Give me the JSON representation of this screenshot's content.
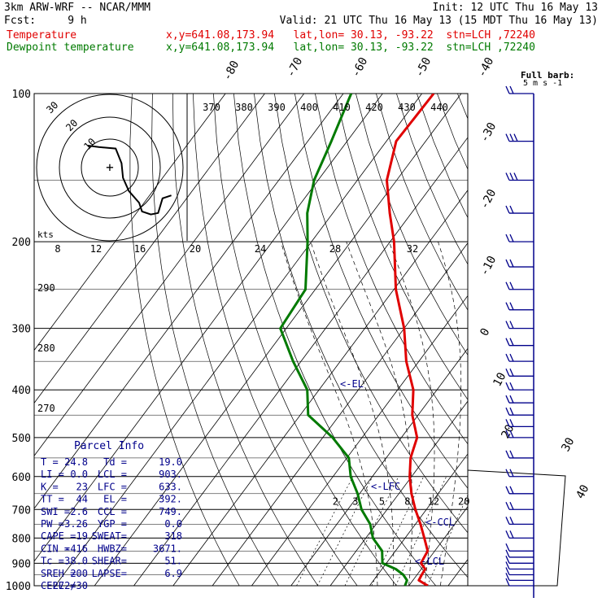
{
  "header": {
    "model": "3km ARW-WRF -- NCAR/MMM",
    "init": "Init: 12 UTC Thu 16 May 13",
    "fcst": "Fcst:     9 h",
    "valid": "Valid: 21 UTC Thu 16 May 13 (15 MDT Thu 16 May 13)",
    "temp_label": "Temperature",
    "dew_label": "Dewpoint temperature",
    "temp_loc": "x,y=641.08,173.94   lat,lon= 30.13, -93.22  stn=LCH ,72240",
    "dew_loc": "x,y=641.08,173.94   lat,lon= 30.13, -93.22  stn=LCH ,72240",
    "barb_note_1": "Full barb:",
    "barb_note_2": "5 m s",
    "barb_note_sup": "-1"
  },
  "colors": {
    "temperature": "#e00000",
    "dewpoint": "#007a00",
    "info": "#00008b",
    "grid": "#000000"
  },
  "chart_data": {
    "type": "line",
    "title": "",
    "ylabel": "",
    "pressure_levels": [
      100,
      200,
      300,
      400,
      500,
      600,
      700,
      800,
      900,
      1000
    ],
    "pressure_labels": [
      "100",
      "200",
      "300",
      "400",
      "500",
      "600",
      "700",
      "800",
      "900",
      "1000"
    ],
    "isotherm_labels": [
      "-80",
      "-70",
      "-60",
      "-50",
      "-40",
      "-30",
      "-20",
      "-10",
      "0",
      "10",
      "20",
      "30",
      "40"
    ],
    "theta_labels": [
      "370",
      "380",
      "390",
      "400",
      "410",
      "420",
      "430",
      "440"
    ],
    "mixing_ratio_labels": [
      "2",
      "3",
      "5",
      "8",
      "12",
      "20"
    ],
    "hodo_speed_labels": [
      "8",
      "12",
      "16",
      "20",
      "24",
      "28",
      "32"
    ],
    "hodo_ring_labels": [
      "30",
      "20",
      "10"
    ],
    "hodo_kts_label": "kts",
    "left_numbers": [
      "290",
      "280",
      "270"
    ],
    "parcel_markers": [
      "<-EL",
      "<-LFC",
      "<-CCL",
      "<-LCL"
    ],
    "series": [
      {
        "name": "Temperature",
        "pressure": [
          1000,
          975,
          950,
          925,
          900,
          850,
          800,
          750,
          700,
          650,
          600,
          550,
          500,
          450,
          400,
          350,
          300,
          250,
          200,
          175,
          150,
          125,
          100
        ],
        "temperature": [
          24.8,
          21.5,
          21.2,
          21.0,
          18.8,
          18.2,
          14.9,
          11.3,
          7.2,
          3.2,
          -0.5,
          -3.8,
          -6.0,
          -11.5,
          -16.0,
          -23.2,
          -30.0,
          -39.5,
          -49.0,
          -55.5,
          -62.5,
          -67.5,
          -67.0
        ]
      },
      {
        "name": "Dewpoint temperature",
        "pressure": [
          1000,
          975,
          950,
          925,
          900,
          850,
          800,
          750,
          700,
          650,
          600,
          550,
          500,
          450,
          400,
          350,
          300,
          250,
          200,
          175,
          150,
          125,
          100
        ],
        "temperature": [
          19.0,
          18.5,
          16.5,
          13.5,
          9.0,
          6.6,
          1.8,
          -1.5,
          -6.5,
          -10.5,
          -15.5,
          -19.5,
          -27.5,
          -38.0,
          -43.0,
          -52.0,
          -61.5,
          -62.5,
          -71.0,
          -76.5,
          -81.0,
          -84.0,
          -88.0
        ]
      }
    ]
  },
  "hodograph_points_ms": [
    [
      -3,
      7
    ],
    [
      -1.5,
      6.8
    ],
    [
      0.8,
      6.6
    ],
    [
      1.6,
      4.6
    ],
    [
      1.8,
      2.6
    ],
    [
      2.6,
      0.8
    ],
    [
      4.0,
      -0.8
    ],
    [
      4.4,
      -2.0
    ],
    [
      5.6,
      -2.4
    ],
    [
      6.6,
      -2.2
    ],
    [
      7.2,
      -0.2
    ],
    [
      8.4,
      0.2
    ]
  ],
  "parcel_info": {
    "title": "Parcel Info",
    "rows": [
      [
        "T  =",
        "24.8",
        "Td =",
        "19.0"
      ],
      [
        "LI =",
        "0.0",
        "LCL =",
        "903."
      ],
      [
        "K  =",
        "23",
        "LFC =",
        "633."
      ],
      [
        "TT =",
        "44",
        "EL  =",
        "392."
      ],
      [
        "SWI =",
        "2.6",
        "CCL =",
        "749."
      ],
      [
        "PW =",
        "3.26",
        "YGP =",
        "0.0"
      ],
      [
        "CAPE =",
        "19",
        "SWEAT=",
        "318"
      ],
      [
        "CIN =",
        "-416",
        "HWBZ=",
        "3671."
      ],
      [
        "Tc =",
        "38.0",
        "SHEAR=",
        "51."
      ],
      [
        "SREH =",
        "200",
        "LAPSE=",
        "6.9"
      ],
      [
        "CELL =",
        "272/30",
        "",
        ""
      ]
    ]
  },
  "wind_barbs": [
    {
      "p": 100,
      "dir": 270,
      "spd": 12
    },
    {
      "p": 125,
      "dir": 270,
      "spd": 14
    },
    {
      "p": 150,
      "dir": 265,
      "spd": 13
    },
    {
      "p": 175,
      "dir": 265,
      "spd": 12
    },
    {
      "p": 200,
      "dir": 270,
      "spd": 11
    },
    {
      "p": 225,
      "dir": 270,
      "spd": 11
    },
    {
      "p": 250,
      "dir": 270,
      "spd": 10
    },
    {
      "p": 275,
      "dir": 270,
      "spd": 10
    },
    {
      "p": 300,
      "dir": 270,
      "spd": 10
    },
    {
      "p": 325,
      "dir": 275,
      "spd": 10
    },
    {
      "p": 350,
      "dir": 275,
      "spd": 10
    },
    {
      "p": 375,
      "dir": 275,
      "spd": 10
    },
    {
      "p": 400,
      "dir": 280,
      "spd": 11
    },
    {
      "p": 425,
      "dir": 280,
      "spd": 12
    },
    {
      "p": 450,
      "dir": 280,
      "spd": 12
    },
    {
      "p": 475,
      "dir": 280,
      "spd": 12
    },
    {
      "p": 500,
      "dir": 285,
      "spd": 11
    },
    {
      "p": 550,
      "dir": 285,
      "spd": 11
    },
    {
      "p": 600,
      "dir": 285,
      "spd": 11
    },
    {
      "p": 650,
      "dir": 290,
      "spd": 10
    },
    {
      "p": 700,
      "dir": 300,
      "spd": 9
    },
    {
      "p": 750,
      "dir": 320,
      "spd": 8
    },
    {
      "p": 800,
      "dir": 340,
      "spd": 8
    },
    {
      "p": 850,
      "dir": 350,
      "spd": 7
    },
    {
      "p": 875,
      "dir": 355,
      "spd": 6
    },
    {
      "p": 900,
      "dir": 355,
      "spd": 5
    },
    {
      "p": 925,
      "dir": 330,
      "spd": 6
    },
    {
      "p": 950,
      "dir": 300,
      "spd": 7
    },
    {
      "p": 975,
      "dir": 275,
      "spd": 6
    },
    {
      "p": 1000,
      "dir": 260,
      "spd": 4
    }
  ]
}
